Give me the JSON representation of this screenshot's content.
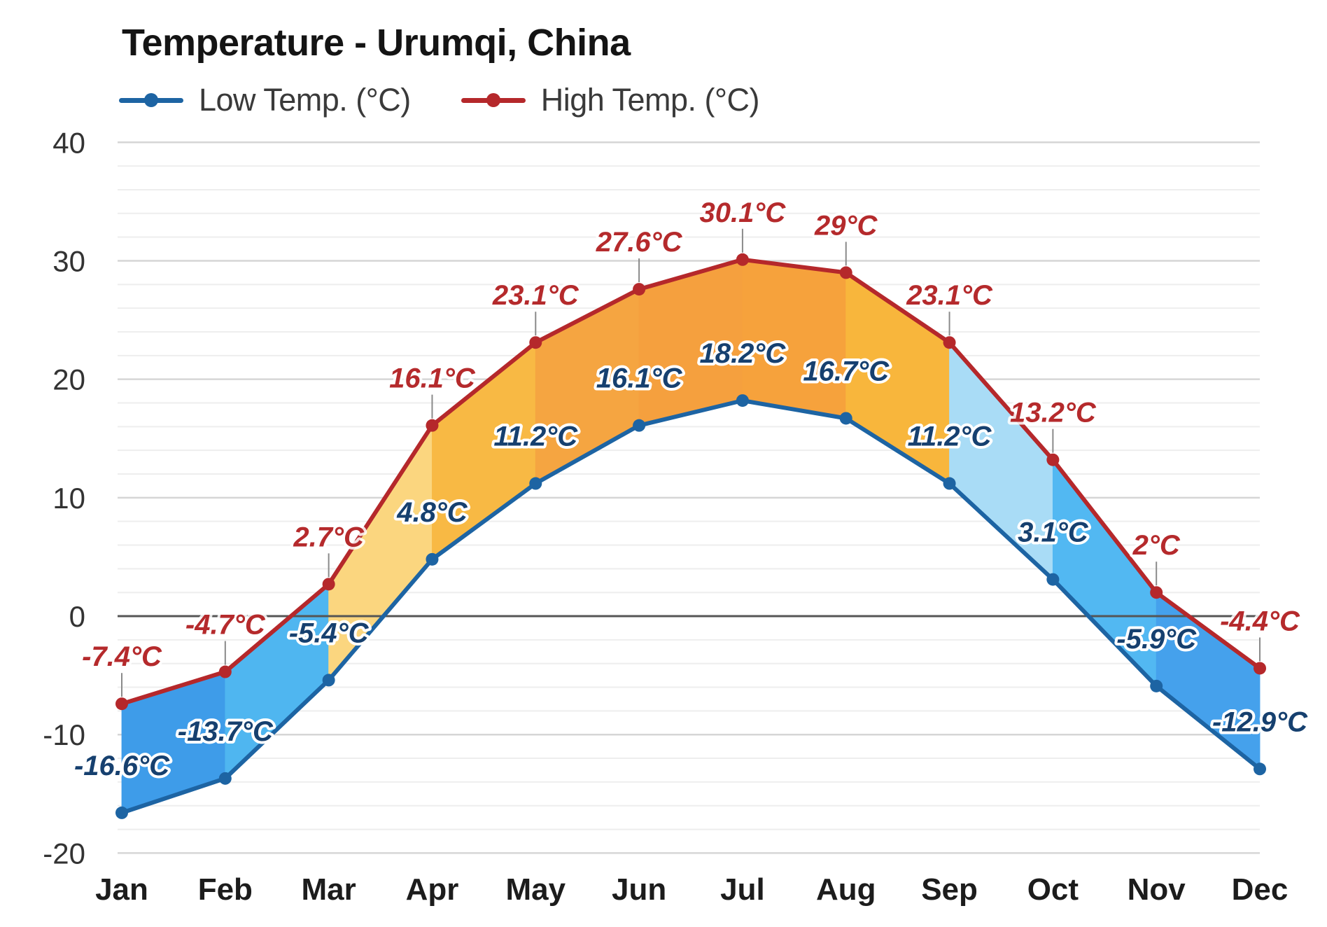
{
  "chart_data": {
    "type": "line",
    "subtype": "area-range",
    "title": "Temperature - Urumqi, China",
    "xlabel": "",
    "ylabel": "",
    "categories": [
      "Jan",
      "Feb",
      "Mar",
      "Apr",
      "May",
      "Jun",
      "Jul",
      "Aug",
      "Sep",
      "Oct",
      "Nov",
      "Dec"
    ],
    "series": [
      {
        "name": "Low Temp. (°C)",
        "color": "#1d64a3",
        "values": [
          -16.6,
          -13.7,
          -5.4,
          4.8,
          11.2,
          16.1,
          18.2,
          16.7,
          11.2,
          3.1,
          -5.9,
          -12.9
        ],
        "labels": [
          "-16.6°C",
          "-13.7°C",
          "-5.4°C",
          "4.8°C",
          "11.2°C",
          "16.1°C",
          "18.2°C",
          "16.7°C",
          "11.2°C",
          "3.1°C",
          "-5.9°C",
          "-12.9°C"
        ]
      },
      {
        "name": "High Temp. (°C)",
        "color": "#b5282b",
        "values": [
          -7.4,
          -4.7,
          2.7,
          16.1,
          23.1,
          27.6,
          30.1,
          29,
          23.1,
          13.2,
          2,
          -4.4
        ],
        "labels": [
          "-7.4°C",
          "-4.7°C",
          "2.7°C",
          "16.1°C",
          "23.1°C",
          "27.6°C",
          "30.1°C",
          "29°C",
          "23.1°C",
          "13.2°C",
          "2°C",
          "-4.4°C"
        ]
      }
    ],
    "band_fill_colors": [
      "#3e9ce9",
      "#4fb6f0",
      "#fbd67f",
      "#f8b944",
      "#f5a541",
      "#f5a03e",
      "#f6a23c",
      "#f8b63c",
      "#a9dcf6",
      "#52b8f2",
      "#45a1ec"
    ],
    "ylim": [
      -20,
      40
    ],
    "yticks": [
      40,
      30,
      20,
      10,
      0,
      -10,
      -20
    ],
    "minor_grid_step": 2,
    "grid": true,
    "legend_position": "top-left"
  },
  "legend": {
    "low_label": "Low Temp. (°C)",
    "high_label": "High Temp. (°C)",
    "low_color": "#1d64a3",
    "high_color": "#b5282b"
  },
  "colors": {
    "zero_line": "#555555",
    "grid_major": "#d6d6d6",
    "grid_minor": "#eeeeee",
    "leader_line": "#8a8a8a"
  }
}
